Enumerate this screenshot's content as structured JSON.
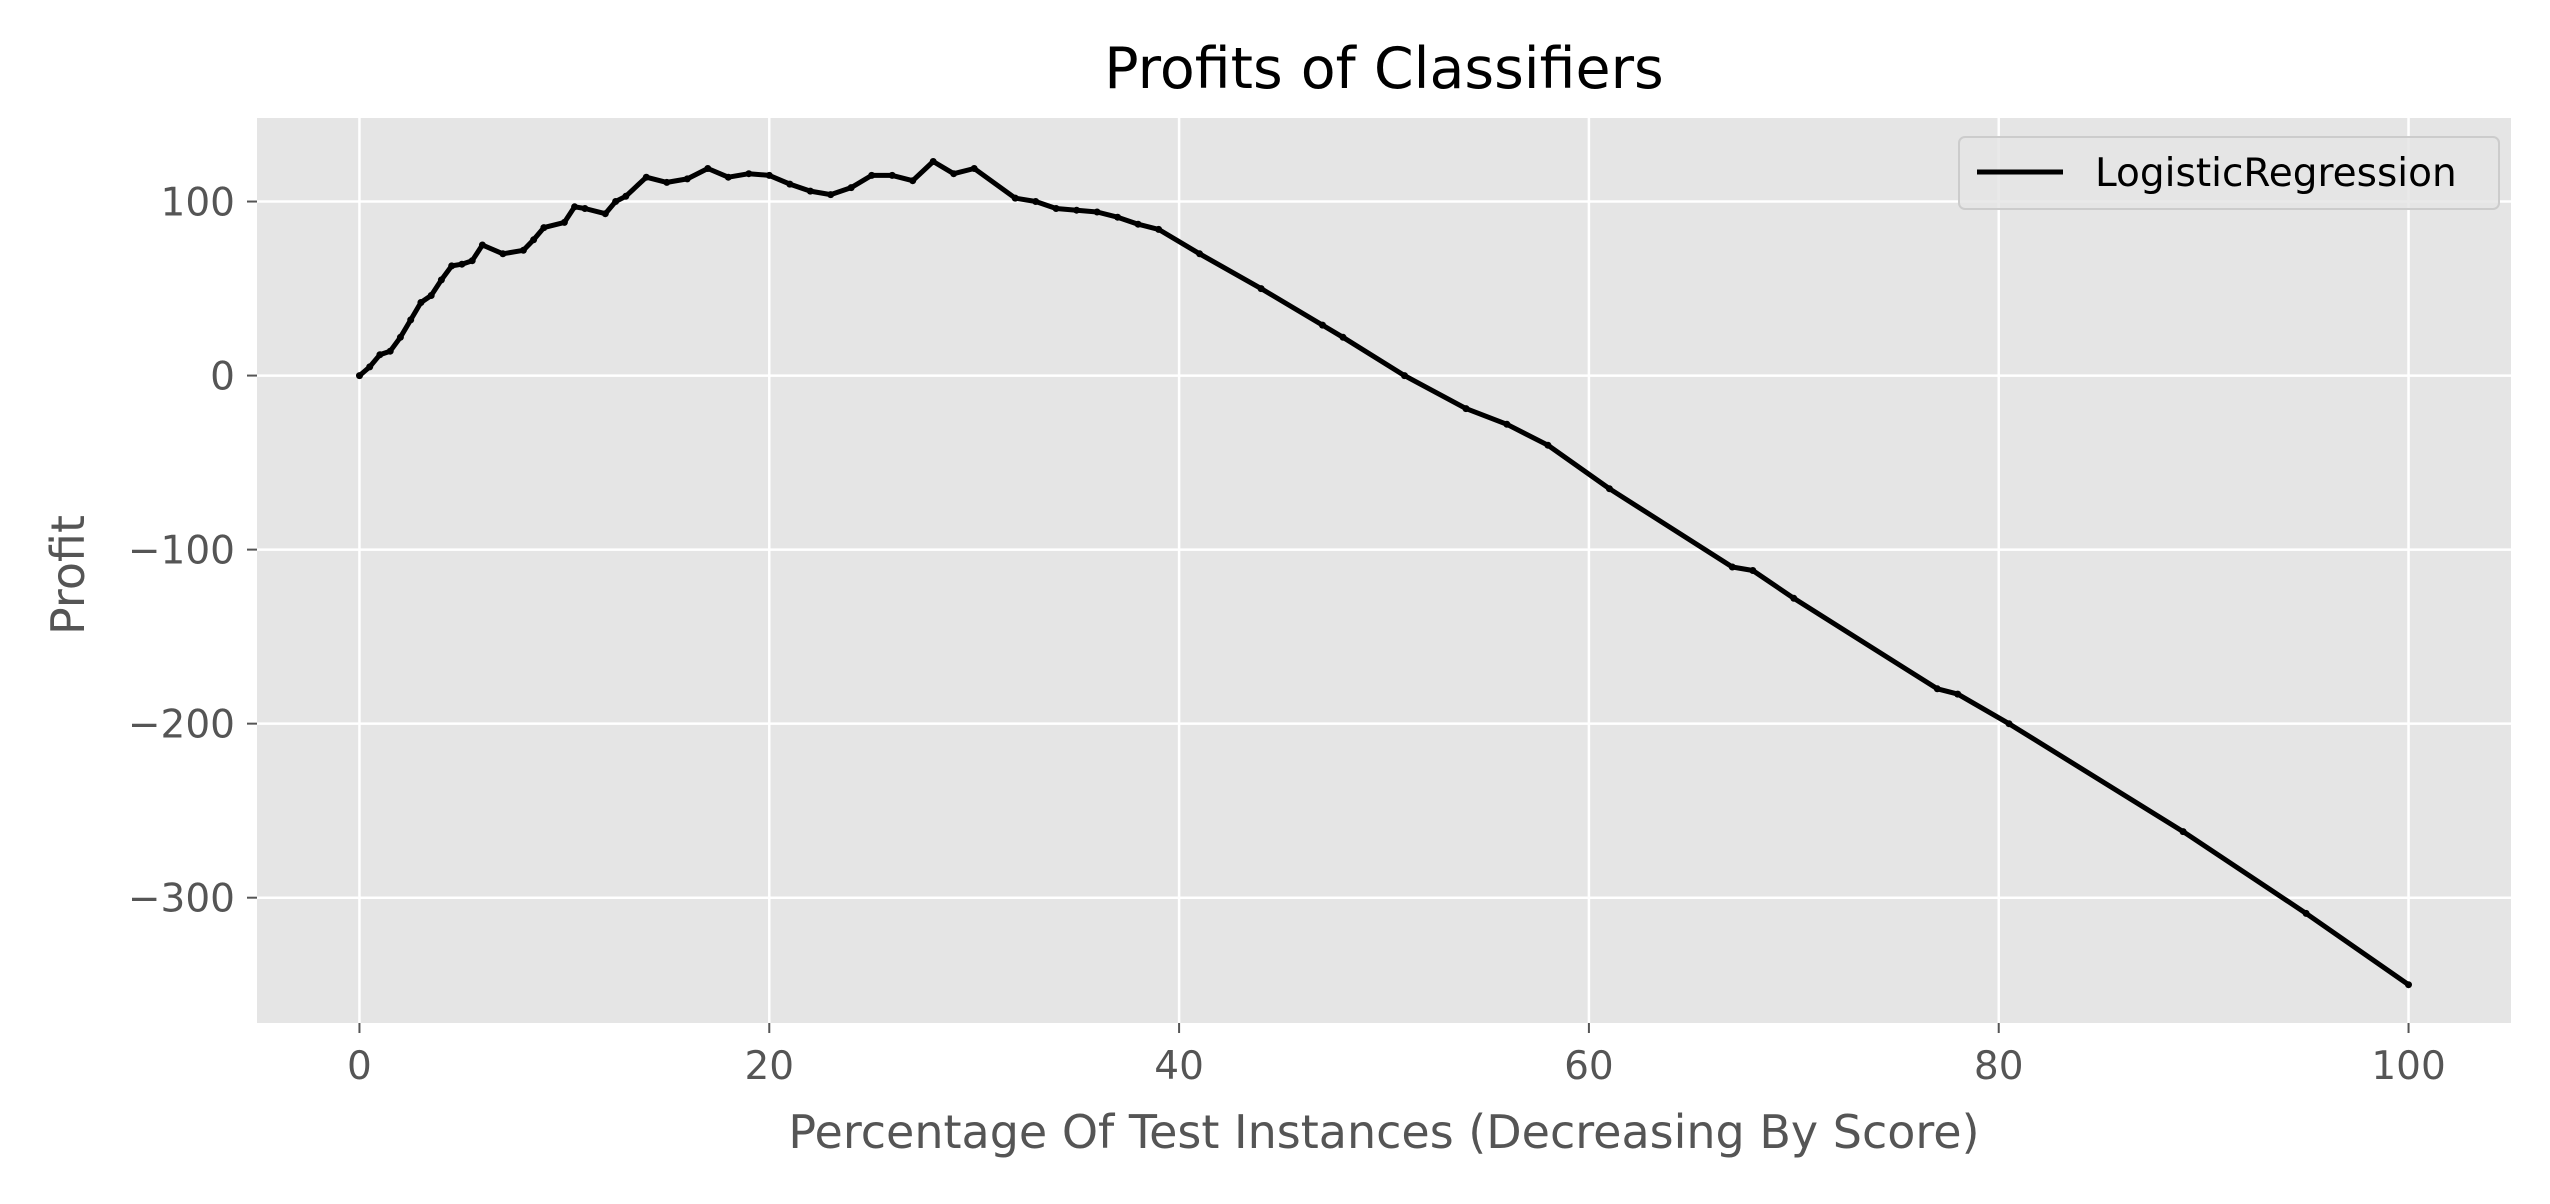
{
  "chart_data": {
    "type": "line",
    "title": "Profits of Classifiers",
    "xlabel": "Percentage Of Test Instances (Decreasing By Score)",
    "ylabel": "Profit",
    "xlim": [
      -5,
      105
    ],
    "ylim": [
      -372,
      148
    ],
    "xticks": [
      0,
      20,
      40,
      60,
      80,
      100
    ],
    "yticks": [
      100,
      0,
      -100,
      -200,
      -300
    ],
    "xtick_labels": [
      "0",
      "20",
      "40",
      "60",
      "80",
      "100"
    ],
    "ytick_labels": [
      "100",
      "0",
      "−100",
      "−200",
      "−300"
    ],
    "grid": true,
    "background": "#e5e5e5",
    "grid_color": "#ffffff",
    "legend_position": "top-right",
    "series": [
      {
        "name": "LogisticRegression",
        "color": "#000000",
        "x": [
          0,
          0.5,
          1,
          1.5,
          2,
          2.5,
          3,
          3.5,
          4,
          4.5,
          5,
          5.5,
          6,
          7,
          8,
          8.5,
          9,
          10,
          10.5,
          11,
          12,
          12.5,
          13,
          14,
          15,
          16,
          17,
          18,
          19,
          20,
          21,
          22,
          23,
          24,
          25,
          26,
          27,
          28,
          29,
          30,
          32,
          33,
          34,
          35,
          36,
          37,
          38,
          39,
          41,
          44,
          47,
          48,
          51,
          54,
          56,
          58,
          61,
          67,
          68,
          70,
          77,
          78,
          80.5,
          89,
          95,
          100
        ],
        "y": [
          0,
          5,
          12,
          14,
          22,
          32,
          42,
          46,
          55,
          63,
          64,
          66,
          75,
          70,
          72,
          78,
          85,
          88,
          97,
          96,
          93,
          100,
          103,
          114,
          111,
          113,
          119,
          114,
          116,
          115,
          110,
          106,
          104,
          108,
          115,
          115,
          112,
          123,
          116,
          119,
          102,
          100,
          96,
          95,
          94,
          91,
          87,
          84,
          70,
          50,
          29,
          22,
          0,
          -19,
          -28,
          -40,
          -65,
          -110,
          -112,
          -128,
          -180,
          -183,
          -200,
          -262,
          -309,
          -350
        ]
      }
    ]
  }
}
